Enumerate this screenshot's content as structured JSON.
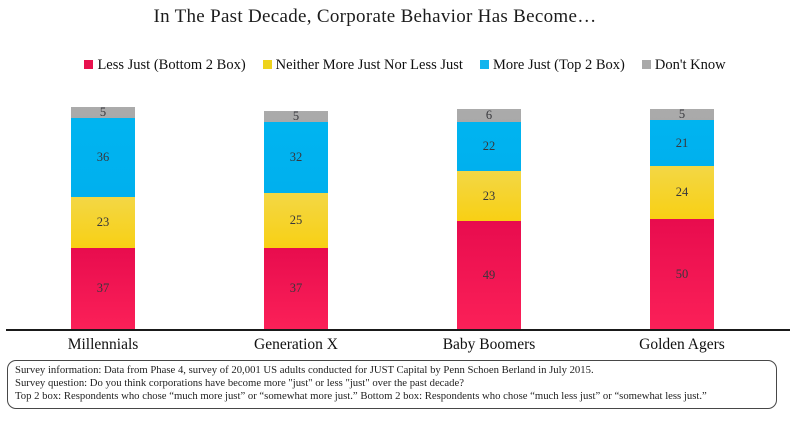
{
  "title": "In The Past Decade, Corporate Behavior Has Become…",
  "legend": [
    {
      "label": "Less Just (Bottom 2 Box)",
      "color": "#e8114e"
    },
    {
      "label": "Neither More Just Nor Less Just",
      "color": "#eed31c"
    },
    {
      "label": "More Just (Top 2 Box)",
      "color": "#10b4ee"
    },
    {
      "label": "Don't Know",
      "color": "#a9a9a9"
    }
  ],
  "chart_data": {
    "type": "bar",
    "variant": "stacked-vertical",
    "title": "In The Past Decade, Corporate Behavior Has Become…",
    "categories": [
      "Millennials",
      "Generation X",
      "Baby Boomers",
      "Golden Agers"
    ],
    "series": [
      {
        "name": "Less Just (Bottom 2 Box)",
        "color_top": "#e80c4e",
        "color_bottom": "#fb2058",
        "values": [
          37,
          37,
          49,
          50
        ]
      },
      {
        "name": "Neither More Just Nor Less Just",
        "color_top": "#f3d745",
        "color_bottom": "#f8d014",
        "values": [
          23,
          25,
          23,
          24
        ]
      },
      {
        "name": "More Just (Top 2 Box)",
        "color_top": "#00b4f0",
        "color_bottom": "#00b0ee",
        "values": [
          36,
          32,
          22,
          21
        ]
      },
      {
        "name": "Don't Know",
        "color_top": "#ababab",
        "color_bottom": "#a9a9a9",
        "values": [
          5,
          5,
          6,
          5
        ]
      }
    ],
    "ylim": [
      0,
      101
    ],
    "grid": false,
    "legend_position": "top",
    "data_labels": true,
    "xlabel": "",
    "ylabel": ""
  },
  "footnote": {
    "lines": [
      "Survey information: Data from Phase 4, survey of 20,001 US adults conducted for JUST Capital by Penn Schoen Berland in July 2015.",
      "Survey question: Do you think corporations have become more \"just\" or less \"just\" over the past decade?",
      "Top 2 box: Respondents who chose “much more just” or “somewhat more just.” Bottom 2 box: Respondents who chose “much less just” or “somewhat less just.”"
    ]
  }
}
